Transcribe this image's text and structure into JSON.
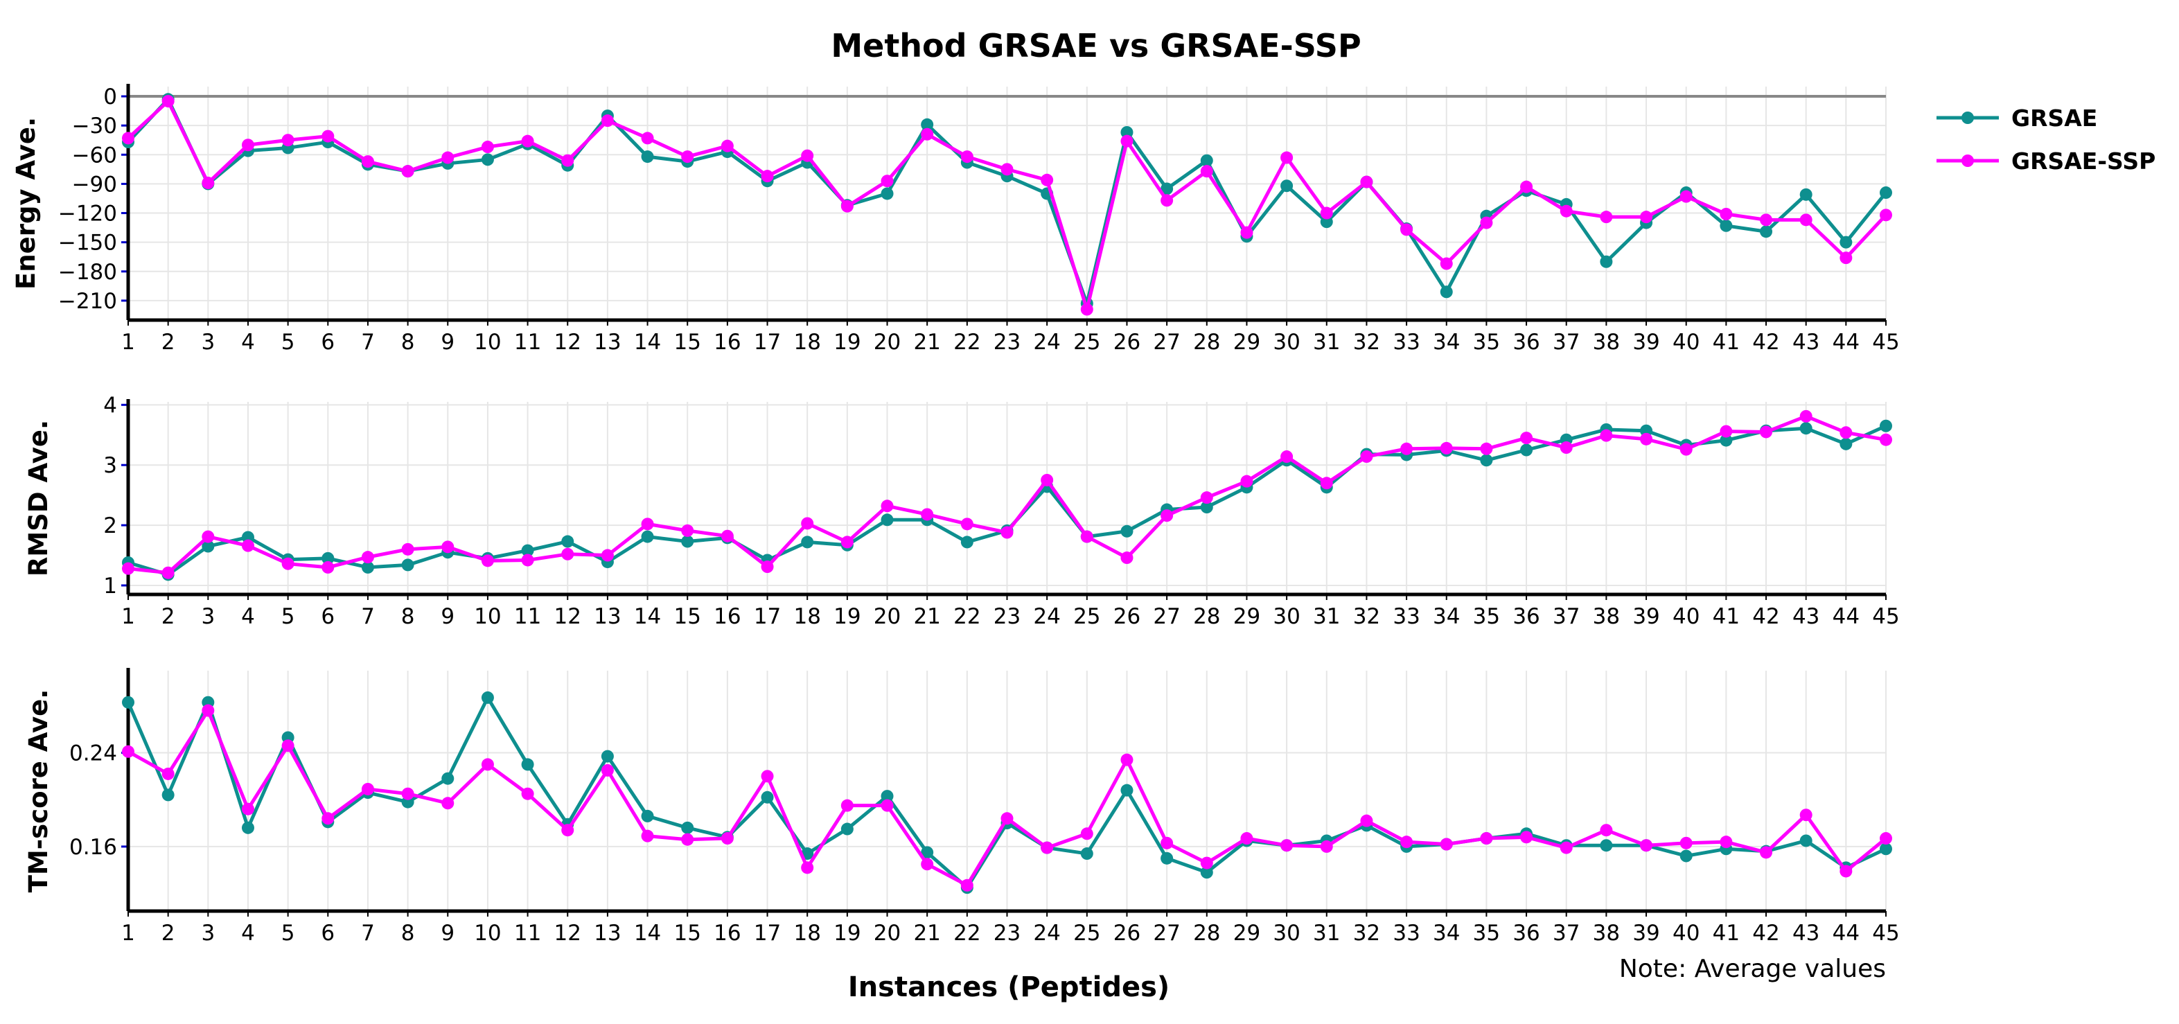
{
  "chart_data": {
    "type": "line",
    "title": "Method GRSAE vs GRSAE-SSP",
    "xlabel": "Instances (Peptides)",
    "note": "Note: Average values",
    "colors": {
      "GRSAE": "#0e8f8f",
      "GRSAE-SSP": "#ff00ff"
    },
    "x": [
      1,
      2,
      3,
      4,
      5,
      6,
      7,
      8,
      9,
      10,
      11,
      12,
      13,
      14,
      15,
      16,
      17,
      18,
      19,
      20,
      21,
      22,
      23,
      24,
      25,
      26,
      27,
      28,
      29,
      30,
      31,
      32,
      33,
      34,
      35,
      36,
      37,
      38,
      39,
      40,
      41,
      42,
      43,
      44,
      45
    ],
    "legend": [
      "GRSAE",
      "GRSAE-SSP"
    ],
    "panels": [
      {
        "ylabel": "Energy Ave.",
        "ylim": [
          -230,
          10
        ],
        "yticks": [
          0,
          -30,
          -60,
          -90,
          -120,
          -150,
          -180,
          -210
        ],
        "reference_line": 0,
        "series": [
          {
            "name": "GRSAE",
            "values": [
              -47,
              -3,
              -90,
              -56,
              -53,
              -47,
              -70,
              -77,
              -69,
              -65,
              -49,
              -71,
              -20,
              -62,
              -67,
              -57,
              -87,
              -68,
              -112,
              -100,
              -29,
              -68,
              -82,
              -100,
              -213,
              -37,
              -95,
              -66,
              -144,
              -92,
              -129,
              -88,
              -136,
              -201,
              -123,
              -97,
              -111,
              -170,
              -130,
              -99,
              -133,
              -139,
              -101,
              -150,
              -99
            ]
          },
          {
            "name": "GRSAE-SSP",
            "values": [
              -43,
              -5,
              -89,
              -50,
              -45,
              -41,
              -67,
              -77,
              -63,
              -52,
              -46,
              -66,
              -25,
              -43,
              -62,
              -51,
              -82,
              -61,
              -113,
              -87,
              -39,
              -62,
              -75,
              -86,
              -219,
              -46,
              -107,
              -77,
              -140,
              -63,
              -120,
              -88,
              -137,
              -172,
              -130,
              -93,
              -118,
              -124,
              -124,
              -103,
              -121,
              -127,
              -127,
              -166,
              -122
            ]
          }
        ]
      },
      {
        "ylabel": "RMSD Ave.",
        "ylim": [
          0.85,
          4.05
        ],
        "yticks": [
          1,
          2,
          3,
          4
        ],
        "series": [
          {
            "name": "GRSAE",
            "values": [
              1.38,
              1.18,
              1.65,
              1.8,
              1.43,
              1.45,
              1.3,
              1.34,
              1.55,
              1.45,
              1.58,
              1.73,
              1.39,
              1.81,
              1.73,
              1.79,
              1.42,
              1.72,
              1.67,
              2.09,
              2.09,
              1.72,
              1.91,
              2.64,
              1.81,
              1.9,
              2.26,
              2.3,
              2.63,
              3.08,
              2.63,
              3.18,
              3.17,
              3.24,
              3.08,
              3.25,
              3.42,
              3.59,
              3.57,
              3.33,
              3.41,
              3.57,
              3.61,
              3.35,
              3.65
            ]
          },
          {
            "name": "GRSAE-SSP",
            "values": [
              1.28,
              1.21,
              1.81,
              1.66,
              1.36,
              1.3,
              1.47,
              1.6,
              1.64,
              1.41,
              1.42,
              1.52,
              1.5,
              2.02,
              1.91,
              1.82,
              1.31,
              2.03,
              1.72,
              2.32,
              2.18,
              2.02,
              1.88,
              2.75,
              1.81,
              1.46,
              2.16,
              2.46,
              2.73,
              3.14,
              2.7,
              3.14,
              3.27,
              3.28,
              3.27,
              3.45,
              3.29,
              3.49,
              3.43,
              3.26,
              3.56,
              3.55,
              3.81,
              3.54,
              3.42
            ]
          }
        ]
      },
      {
        "ylabel": "TM-score Ave.",
        "ylim": [
          0.105,
          0.31
        ],
        "yticks": [
          0.16,
          0.24
        ],
        "series": [
          {
            "name": "GRSAE",
            "values": [
              0.283,
              0.204,
              0.283,
              0.176,
              0.253,
              0.181,
              0.206,
              0.198,
              0.218,
              0.287,
              0.23,
              0.179,
              0.237,
              0.186,
              0.176,
              0.168,
              0.202,
              0.154,
              0.175,
              0.203,
              0.155,
              0.125,
              0.18,
              0.159,
              0.154,
              0.208,
              0.15,
              0.138,
              0.165,
              0.161,
              0.165,
              0.178,
              0.16,
              0.162,
              0.167,
              0.171,
              0.161,
              0.161,
              0.161,
              0.152,
              0.158,
              0.156,
              0.165,
              0.142,
              0.158
            ]
          },
          {
            "name": "GRSAE-SSP",
            "values": [
              0.241,
              0.222,
              0.276,
              0.192,
              0.246,
              0.184,
              0.209,
              0.205,
              0.197,
              0.23,
              0.205,
              0.174,
              0.225,
              0.169,
              0.166,
              0.167,
              0.22,
              0.142,
              0.195,
              0.195,
              0.145,
              0.127,
              0.184,
              0.159,
              0.171,
              0.234,
              0.163,
              0.146,
              0.167,
              0.161,
              0.16,
              0.182,
              0.164,
              0.162,
              0.167,
              0.168,
              0.159,
              0.174,
              0.161,
              0.163,
              0.164,
              0.155,
              0.187,
              0.139,
              0.167
            ]
          }
        ]
      }
    ]
  }
}
